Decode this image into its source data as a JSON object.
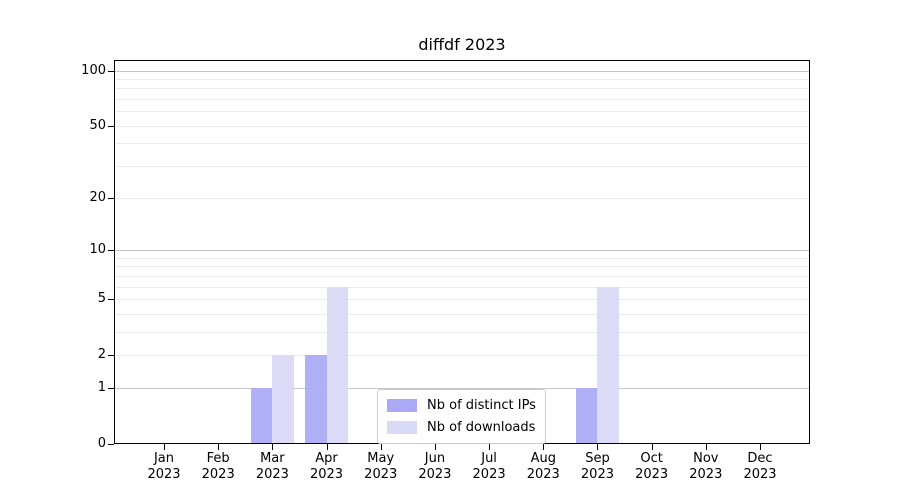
{
  "chart_data": {
    "type": "bar",
    "title": "diffdf 2023",
    "categories": [
      "Jan",
      "Feb",
      "Mar",
      "Apr",
      "May",
      "Jun",
      "Jul",
      "Aug",
      "Sep",
      "Oct",
      "Nov",
      "Dec"
    ],
    "category_year": "2023",
    "series": [
      {
        "name": "Nb of distinct IPs",
        "color": "#a9a9f6",
        "values": [
          0,
          0,
          1,
          2,
          0,
          0,
          0,
          0,
          1,
          0,
          0,
          0
        ]
      },
      {
        "name": "Nb of downloads",
        "color": "#d9d9f8",
        "values": [
          0,
          0,
          2,
          6,
          0,
          0,
          0,
          0,
          6,
          0,
          0,
          0
        ]
      }
    ],
    "yscale": "log1p",
    "ylim": [
      0,
      114
    ],
    "yticks": [
      0,
      1,
      2,
      5,
      10,
      20,
      50,
      100
    ],
    "major_gridlines": [
      1,
      10,
      100
    ],
    "minor_gridlines": [
      2,
      3,
      4,
      5,
      6,
      7,
      8,
      9,
      20,
      30,
      40,
      50,
      60,
      70,
      80,
      90
    ],
    "grid": true,
    "legend_position": "lower center inside",
    "colors": {
      "major_grid": "#c6c6c6",
      "minor_grid": "#ebebeb",
      "spine": "#000000",
      "text": "#000000",
      "legend_border": "#cccccc"
    }
  }
}
